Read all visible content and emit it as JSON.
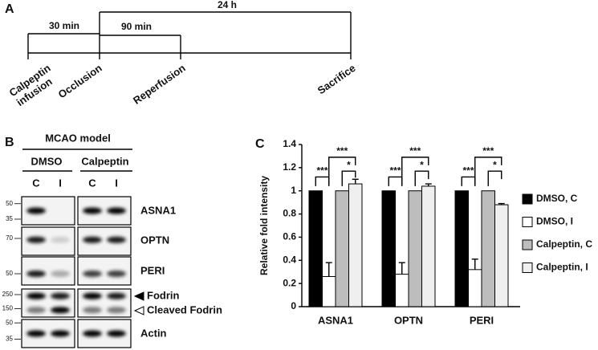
{
  "panel_a": {
    "letter": "A",
    "durations": [
      "30 min",
      "90 min",
      "24 h"
    ],
    "events": [
      {
        "lines": [
          "Calpeptin",
          "infusion"
        ]
      },
      {
        "lines": [
          "Occlusion"
        ]
      },
      {
        "lines": [
          "Reperfusion"
        ]
      },
      {
        "lines": [
          "Sacrifice"
        ]
      }
    ]
  },
  "panel_b": {
    "letter": "B",
    "model": "MCAO model",
    "groups": [
      "DMSO",
      "Calpeptin"
    ],
    "lanes": [
      "C",
      "I",
      "C",
      "I"
    ],
    "rows": [
      {
        "labels": [
          "ASNA1"
        ],
        "markers": [
          "50",
          "35"
        ]
      },
      {
        "labels": [
          "OPTN"
        ],
        "markers": [
          "70"
        ]
      },
      {
        "labels": [
          "PERI"
        ],
        "markers": [
          "50"
        ]
      },
      {
        "labels": [
          "Fodrin",
          "Cleaved Fodrin"
        ],
        "markers": [
          "250",
          "150"
        ]
      },
      {
        "labels": [
          "Actin"
        ],
        "markers": [
          "50",
          "35"
        ]
      }
    ]
  },
  "chart_data": {
    "type": "bar",
    "letter": "C",
    "y_label": "Relative fold intensity",
    "categories": [
      "ASNA1",
      "OPTN",
      "PERI"
    ],
    "series": [
      {
        "name": "DMSO, C",
        "color": "#000000",
        "values": [
          1,
          1,
          1
        ]
      },
      {
        "name": "DMSO, I",
        "color": "#ffffff",
        "values": [
          0.26,
          0.28,
          0.32
        ],
        "errors": [
          0.12,
          0.1,
          0.09
        ]
      },
      {
        "name": "Calpeptin, C",
        "color": "#bdbdbd",
        "values": [
          1,
          1,
          1
        ]
      },
      {
        "name": "Calpeptin, I",
        "color": "#efefef",
        "values": [
          1.06,
          1.04,
          0.88
        ],
        "errors": [
          0.04,
          0.02,
          0.01
        ]
      }
    ],
    "annotations": [
      [
        "***",
        "*",
        "***"
      ],
      [
        "***",
        "*",
        "***"
      ],
      [
        "***",
        "*",
        "***"
      ]
    ],
    "ylim": [
      0,
      1.4
    ],
    "yticks": [
      0,
      0.2,
      0.4,
      0.6,
      0.8,
      1,
      1.2,
      1.4
    ],
    "legend": "right"
  }
}
